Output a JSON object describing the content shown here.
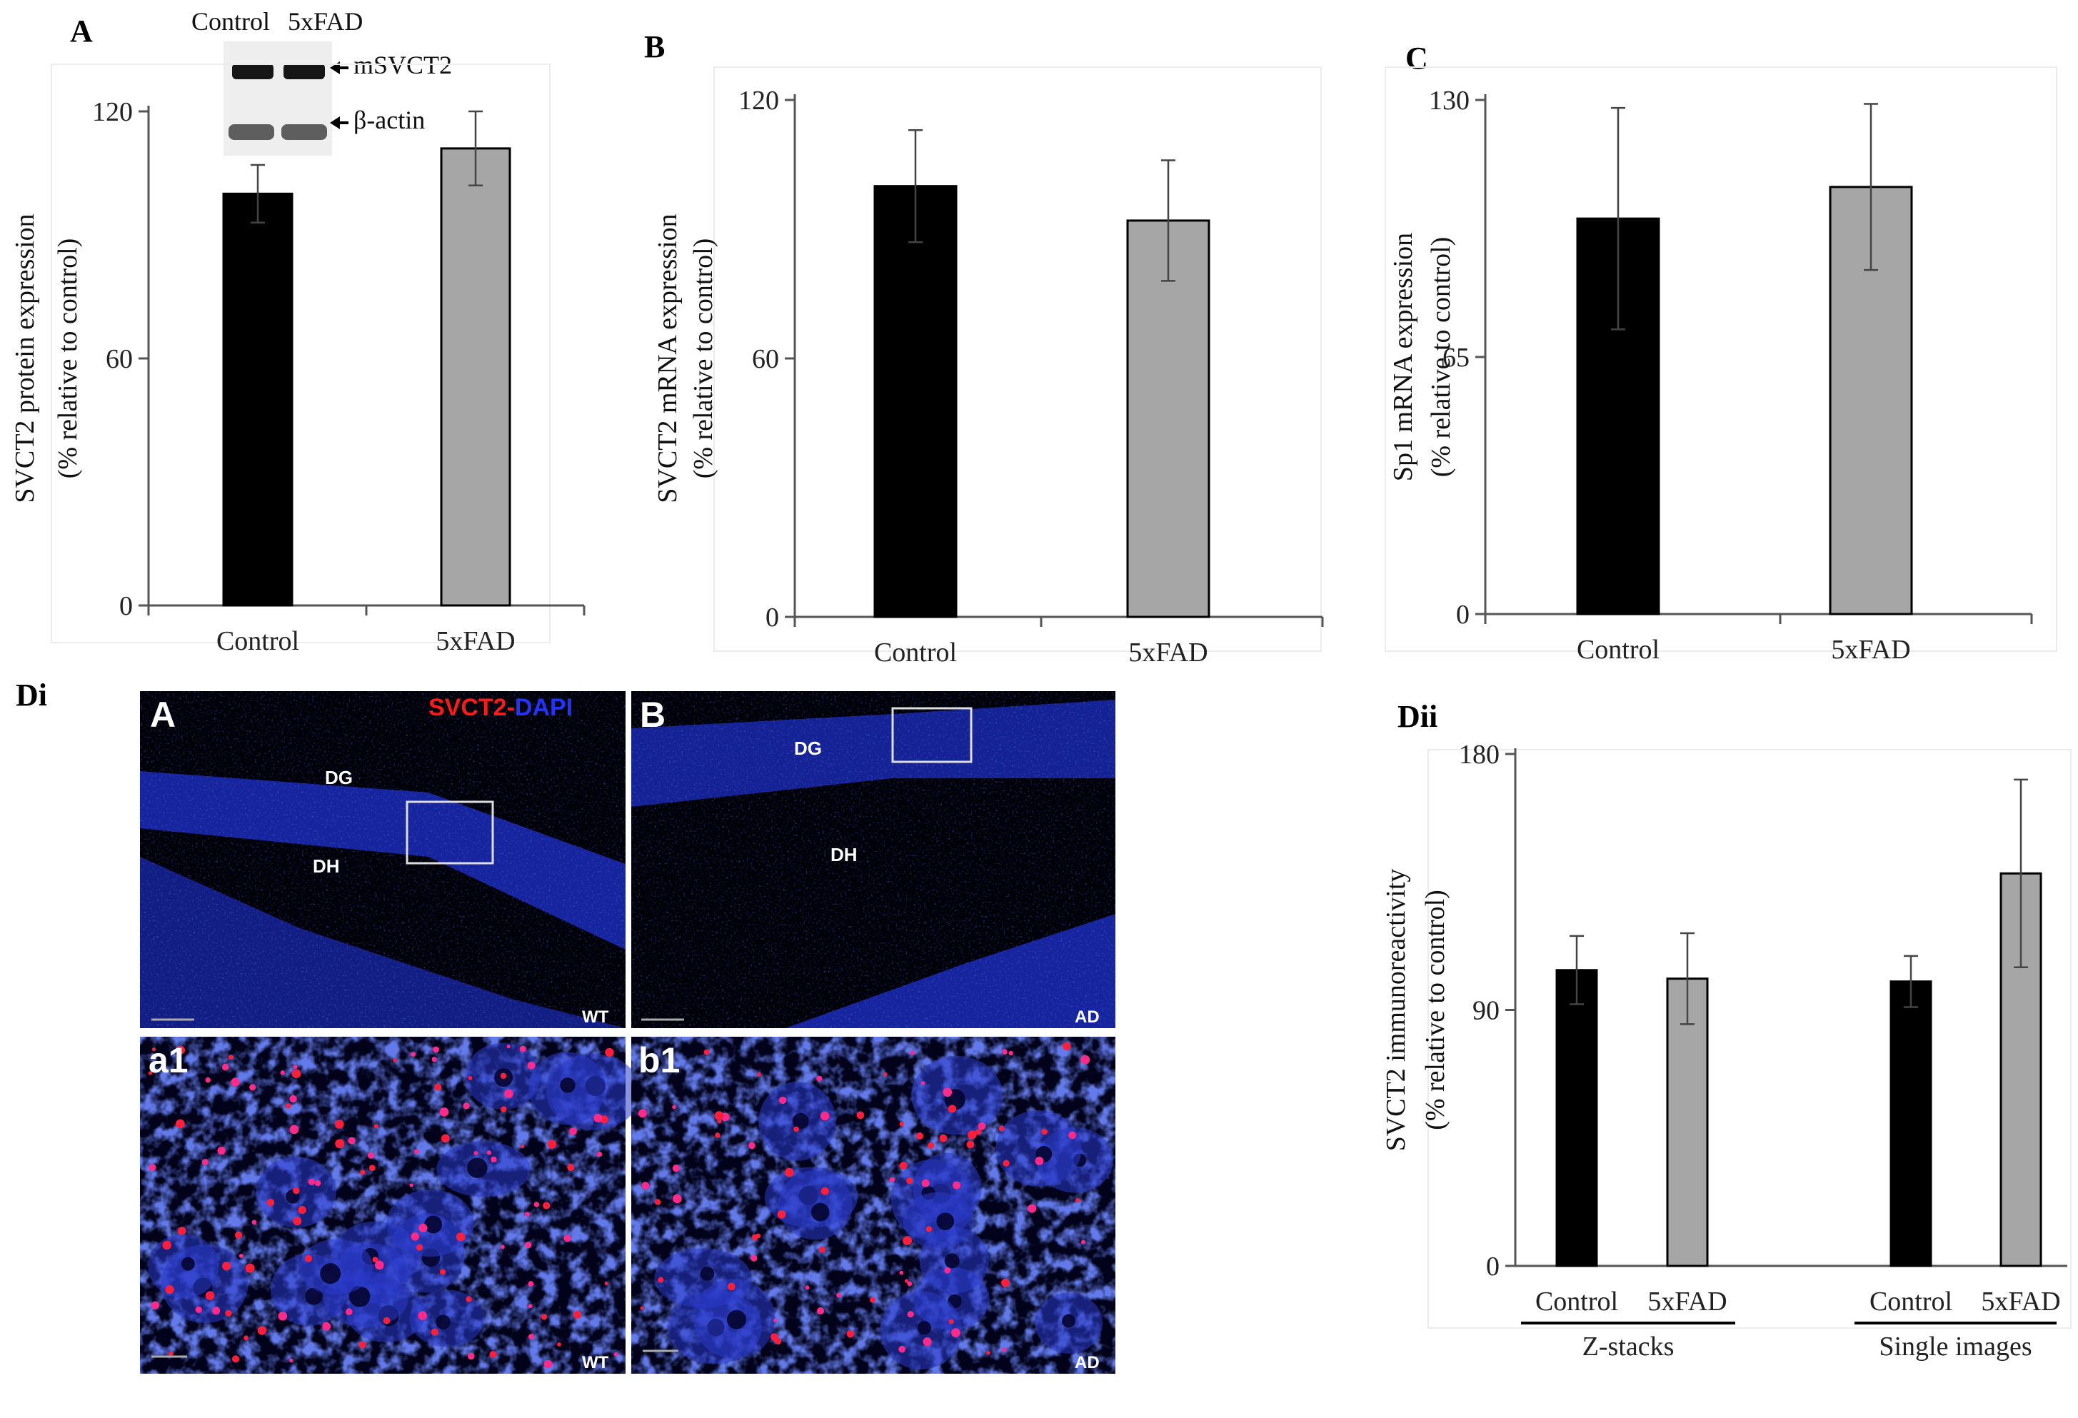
{
  "panel_labels": {
    "A": "A",
    "B": "B",
    "C": "C",
    "Di": "Di",
    "Dii": "Dii"
  },
  "blot": {
    "lane_labels": [
      "Control",
      "5xFAD"
    ],
    "band_labels": [
      "mSVCT2",
      "β-actin"
    ]
  },
  "micrographs": {
    "stain_red": "SVCT2",
    "stain_sep": "-",
    "stain_blue": "DAPI",
    "panels": [
      {
        "letter": "A",
        "regions": [
          "DG",
          "DH"
        ],
        "genotype": "WT"
      },
      {
        "letter": "B",
        "regions": [
          "DG",
          "DH"
        ],
        "genotype": "AD"
      },
      {
        "letter": "a1",
        "regions": [],
        "genotype": "WT"
      },
      {
        "letter": "b1",
        "regions": [],
        "genotype": "AD"
      }
    ]
  },
  "chart_data": [
    {
      "id": "A",
      "type": "bar",
      "categories": [
        "Control",
        "5xFAD"
      ],
      "values": [
        100,
        111
      ],
      "errors": [
        7,
        9
      ],
      "ylim": [
        0,
        120
      ],
      "yticks": [
        0,
        60,
        120
      ],
      "ylabel_line1": "SVCT2 protein expression",
      "ylabel_line2": "(% relative to control)",
      "colors": [
        "#000000",
        "#a6a6a6"
      ]
    },
    {
      "id": "B",
      "type": "bar",
      "categories": [
        "Control",
        "5xFAD"
      ],
      "values": [
        100,
        92
      ],
      "errors": [
        13,
        14
      ],
      "ylim": [
        0,
        120
      ],
      "yticks": [
        0,
        60,
        120
      ],
      "ylabel_line1": "SVCT2 mRNA expression",
      "ylabel_line2": "(% relative to control)",
      "colors": [
        "#000000",
        "#a6a6a6"
      ]
    },
    {
      "id": "C",
      "type": "bar",
      "categories": [
        "Control",
        "5xFAD"
      ],
      "values": [
        100,
        108
      ],
      "errors": [
        28,
        21
      ],
      "ylim": [
        0,
        130
      ],
      "yticks": [
        0,
        65,
        130
      ],
      "ylabel_line1": "Sp1 mRNA expression",
      "ylabel_line2": "(% relative to control)",
      "colors": [
        "#000000",
        "#a6a6a6"
      ]
    },
    {
      "id": "Dii",
      "type": "bar",
      "categories": [
        "Control",
        "5xFAD",
        "Control",
        "5xFAD"
      ],
      "groups": [
        "Z-stacks",
        "Single images"
      ],
      "values": [
        104,
        101,
        100,
        138
      ],
      "errors": [
        12,
        16,
        9,
        33
      ],
      "ylim": [
        0,
        180
      ],
      "yticks": [
        0,
        90,
        180
      ],
      "ylabel_line1": "SVCT2 immunoreactivity",
      "ylabel_line2": "(% relative to control)",
      "colors": [
        "#000000",
        "#a6a6a6",
        "#000000",
        "#a6a6a6"
      ]
    }
  ]
}
